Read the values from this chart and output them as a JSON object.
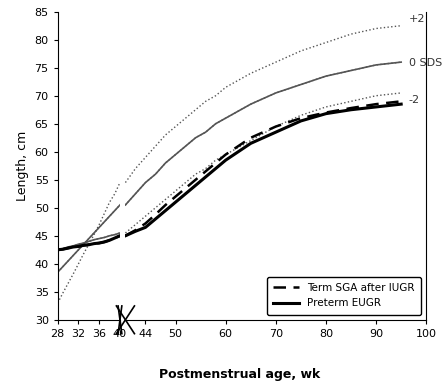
{
  "xlabel": "Postmenstrual age, wk",
  "ylabel": "Length, cm",
  "ylim": [
    30,
    85
  ],
  "yticks": [
    30,
    35,
    40,
    45,
    50,
    55,
    60,
    65,
    70,
    75,
    80,
    85
  ],
  "preterm_x": [
    28,
    29,
    30,
    31,
    32,
    33,
    34,
    35,
    36,
    37,
    38,
    39,
    40
  ],
  "ref_plus2_pre": [
    33.0,
    34.8,
    36.5,
    38.2,
    40.0,
    41.8,
    43.5,
    45.2,
    47.0,
    49.0,
    51.0,
    52.5,
    54.5
  ],
  "ref_zero_pre": [
    38.5,
    39.5,
    40.5,
    41.5,
    42.5,
    43.5,
    44.5,
    45.5,
    46.5,
    47.5,
    48.5,
    49.5,
    50.5
  ],
  "ref_minus2_pre": [
    42.5,
    42.7,
    43.0,
    43.2,
    43.5,
    43.7,
    44.0,
    44.3,
    44.5,
    44.7,
    45.0,
    45.2,
    45.5
  ],
  "gray_solid_upper_pre": [
    38.5,
    39.5,
    40.5,
    41.5,
    42.5,
    43.5,
    44.5,
    45.5,
    46.5,
    47.5,
    48.5,
    49.5,
    50.5
  ],
  "gray_solid_lower_pre": [
    42.5,
    42.7,
    43.0,
    43.2,
    43.5,
    43.7,
    44.0,
    44.3,
    44.5,
    44.7,
    45.0,
    45.2,
    45.5
  ],
  "sga_pre_x": [
    28,
    29,
    30,
    31,
    32,
    33,
    34,
    35,
    36,
    37,
    38,
    39,
    40
  ],
  "sga_pre_y": [
    42.5,
    42.6,
    42.8,
    43.0,
    43.1,
    43.3,
    43.4,
    43.6,
    43.7,
    43.9,
    44.2,
    44.6,
    45.0
  ],
  "eugr_pre_x": [
    28,
    29,
    30,
    31,
    32,
    33,
    34,
    35,
    36,
    37,
    38,
    39,
    40
  ],
  "eugr_pre_y": [
    42.5,
    42.6,
    42.8,
    43.0,
    43.1,
    43.3,
    43.4,
    43.6,
    43.7,
    43.9,
    44.2,
    44.6,
    45.0
  ],
  "postnatal_x": [
    40,
    42,
    44,
    46,
    48,
    50,
    52,
    54,
    56,
    58,
    60,
    65,
    70,
    75,
    80,
    85,
    90,
    95
  ],
  "ref_plus2_post": [
    54.5,
    57.0,
    59.0,
    61.0,
    63.0,
    64.5,
    66.0,
    67.5,
    69.0,
    70.0,
    71.5,
    74.0,
    76.0,
    78.0,
    79.5,
    81.0,
    82.0,
    82.5
  ],
  "ref_zero_post": [
    50.5,
    52.5,
    54.5,
    56.0,
    58.0,
    59.5,
    61.0,
    62.5,
    63.5,
    65.0,
    66.0,
    68.5,
    70.5,
    72.0,
    73.5,
    74.5,
    75.5,
    76.0
  ],
  "ref_minus2_post": [
    45.5,
    47.0,
    48.5,
    50.0,
    51.5,
    53.0,
    54.5,
    56.0,
    57.0,
    58.5,
    59.5,
    62.0,
    64.5,
    66.5,
    68.0,
    69.0,
    70.0,
    70.5
  ],
  "gray_solid_post": [
    50.5,
    52.5,
    54.5,
    56.0,
    58.0,
    59.5,
    61.0,
    62.5,
    63.5,
    65.0,
    66.0,
    68.5,
    70.5,
    72.0,
    73.5,
    74.5,
    75.5,
    76.0
  ],
  "sga_post_x": [
    40,
    42,
    44,
    46,
    48,
    50,
    52,
    54,
    56,
    58,
    60,
    65,
    70,
    75,
    80,
    85,
    90,
    95
  ],
  "sga_post_y": [
    45.0,
    46.0,
    47.2,
    48.8,
    50.5,
    52.0,
    53.5,
    55.0,
    56.5,
    58.0,
    59.5,
    62.5,
    64.5,
    66.0,
    67.0,
    67.8,
    68.5,
    69.0
  ],
  "eugr_post_x": [
    40,
    42,
    44,
    46,
    48,
    50,
    52,
    54,
    56,
    58,
    60,
    65,
    70,
    75,
    80,
    85,
    90,
    95
  ],
  "eugr_post_y": [
    45.0,
    45.8,
    46.5,
    48.0,
    49.5,
    51.0,
    52.5,
    54.0,
    55.5,
    57.0,
    58.5,
    61.5,
    63.5,
    65.5,
    66.8,
    67.5,
    68.0,
    68.5
  ],
  "label_plus2": "+2",
  "label_zero": "0 SDS",
  "label_minus2": "-2",
  "legend1": "Term SGA after IUGR",
  "legend2": "Preterm EUGR"
}
